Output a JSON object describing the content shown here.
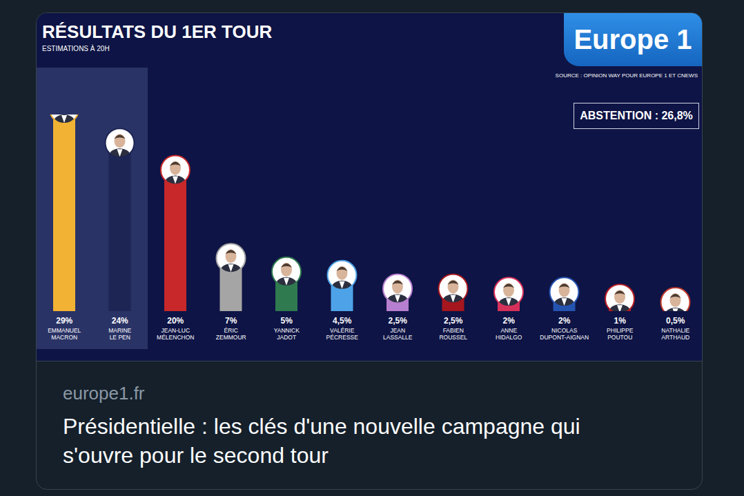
{
  "chart_data": {
    "type": "bar",
    "title": "RÉSULTATS DU 1ER TOUR",
    "subtitle": "ESTIMATIONS À 20H",
    "source": "SOURCE : OPINION WAY POUR EUROPE 1 ET CNEWS",
    "logo": "Europe 1",
    "annotations": [
      "ABSTENTION : 26,8%"
    ],
    "categories": [
      "EMMANUEL MACRON",
      "MARINE LE PEN",
      "JEAN-LUC MÉLENCHON",
      "ÉRIC ZEMMOUR",
      "YANNICK JADOT",
      "VALÉRIE PÉCRESSE",
      "JEAN LASSALLE",
      "FABIEN ROUSSEL",
      "ANNE HIDALGO",
      "NICOLAS DUPONT-AIGNAN",
      "PHILIPPE POUTOU",
      "NATHALIE ARTHAUD"
    ],
    "values": [
      29,
      24,
      20,
      7,
      5,
      4.5,
      2.5,
      2.5,
      2,
      2,
      1,
      0.5
    ],
    "value_labels": [
      "29%",
      "24%",
      "20%",
      "7%",
      "5%",
      "4,5%",
      "2,5%",
      "2,5%",
      "2%",
      "2%",
      "1%",
      "0,5%"
    ],
    "colors": [
      "#f2b234",
      "#1c2553",
      "#c8282a",
      "#a5a5a5",
      "#2f7a4f",
      "#4ea3e8",
      "#b77fcf",
      "#a6161e",
      "#d6315a",
      "#2553b0",
      "#b61c24",
      "#c0392b"
    ],
    "ylim": [
      0,
      29
    ],
    "tick_labels": false,
    "data_labels": true,
    "grid": false
  },
  "link_card": {
    "domain": "europe1.fr",
    "headline": "Présidentielle : les clés d'une nouvelle campagne qui s'ouvre pour le second tour"
  }
}
